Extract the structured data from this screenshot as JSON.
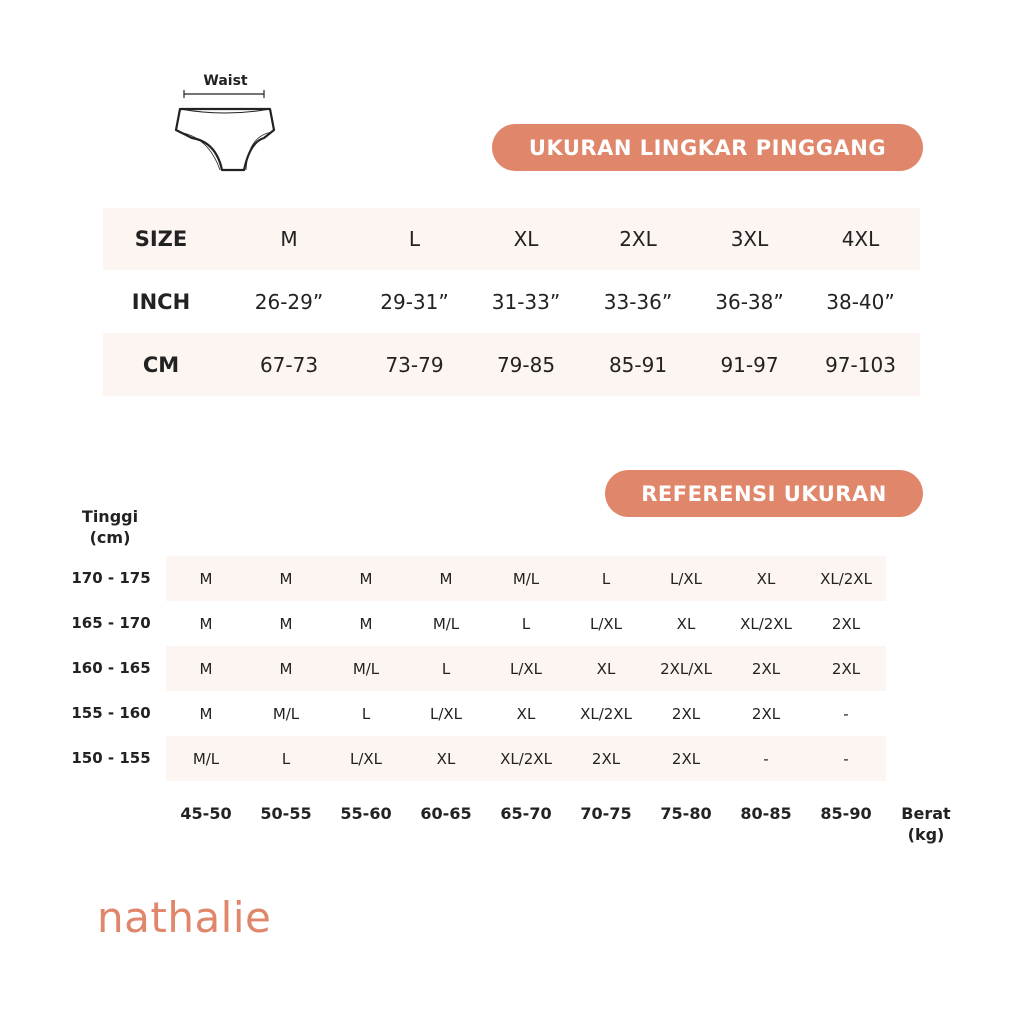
{
  "diagram": {
    "label": "Waist"
  },
  "waist_table": {
    "title": "UKURAN LINGKAR PINGGANG",
    "rows": [
      {
        "label": "SIZE",
        "values": [
          "M",
          "L",
          "XL",
          "2XL",
          "3XL",
          "4XL"
        ]
      },
      {
        "label": "INCH",
        "values": [
          "26-29”",
          "29-31”",
          "31-33”",
          "33-36”",
          "36-38”",
          "38-40”"
        ]
      },
      {
        "label": "CM",
        "values": [
          "67-73",
          "73-79",
          "79-85",
          "85-91",
          "91-97",
          "97-103"
        ]
      }
    ]
  },
  "reference_table": {
    "title": "REFERENSI UKURAN",
    "y_label": [
      "Tinggi",
      "(cm)"
    ],
    "x_label": [
      "Berat",
      "(kg)"
    ],
    "weights": [
      "45-50",
      "50-55",
      "55-60",
      "60-65",
      "65-70",
      "70-75",
      "75-80",
      "80-85",
      "85-90"
    ],
    "rows": [
      {
        "height": "170 - 175",
        "values": [
          "M",
          "M",
          "M",
          "M",
          "M/L",
          "L",
          "L/XL",
          "XL",
          "XL/2XL"
        ]
      },
      {
        "height": "165 - 170",
        "values": [
          "M",
          "M",
          "M",
          "M/L",
          "L",
          "L/XL",
          "XL",
          "XL/2XL",
          "2XL"
        ]
      },
      {
        "height": "160 - 165",
        "values": [
          "M",
          "M",
          "M/L",
          "L",
          "L/XL",
          "XL",
          "2XL/XL",
          "2XL",
          "2XL"
        ]
      },
      {
        "height": "155 - 160",
        "values": [
          "M",
          "M/L",
          "L",
          "L/XL",
          "XL",
          "XL/2XL",
          "2XL",
          "2XL",
          "-"
        ]
      },
      {
        "height": "150 - 155",
        "values": [
          "M/L",
          "L",
          "L/XL",
          "XL",
          "XL/2XL",
          "2XL",
          "2XL",
          "-",
          "-"
        ]
      }
    ]
  },
  "brand": {
    "name": "nathalie"
  },
  "colors": {
    "accent": "#E0866A",
    "band": "#FDF5F1"
  }
}
